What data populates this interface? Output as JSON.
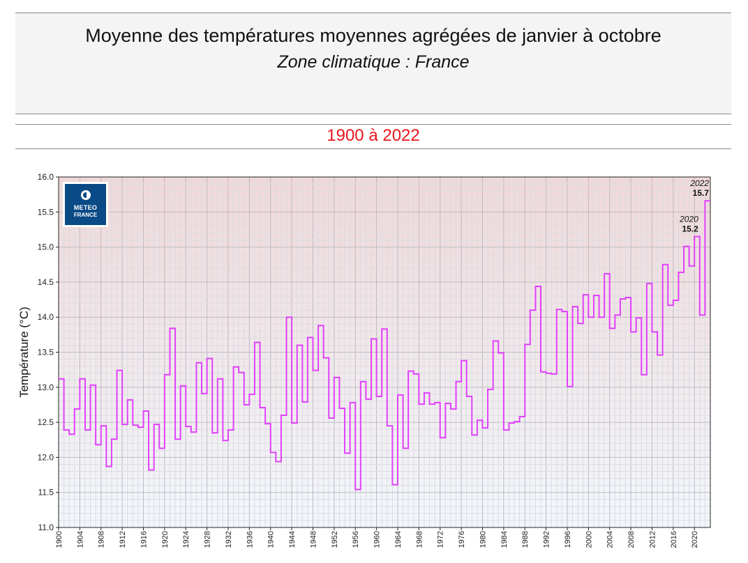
{
  "header": {
    "title": "Moyenne des températures moyennes agrégées de janvier à octobre",
    "subtitle": "Zone climatique : France",
    "period": "1900 à 2022"
  },
  "logo": {
    "line1": "METEO",
    "line2": "FRANCE"
  },
  "colors": {
    "series": "#e040fb",
    "period_text": "#e8161d",
    "bg_top": "#f0d8d8",
    "bg_bottom": "#f2f7fc",
    "grid": "#c8c8c8",
    "logo_bg": "#0a4a86"
  },
  "chart_data": {
    "type": "line",
    "step": true,
    "ylabel": "Température (°C)",
    "xlabel": "",
    "ylim": [
      11.0,
      16.0
    ],
    "yticks": [
      "11.0",
      "11.5",
      "12.0",
      "12.5",
      "13.0",
      "13.5",
      "14.0",
      "14.5",
      "15.0",
      "15.5",
      "16.0"
    ],
    "xlim": [
      1900,
      2023
    ],
    "xticks": [
      "1900",
      "1904",
      "1908",
      "1912",
      "1916",
      "1920",
      "1924",
      "1928",
      "1932",
      "1936",
      "1940",
      "1944",
      "1948",
      "1952",
      "1956",
      "1960",
      "1964",
      "1968",
      "1972",
      "1976",
      "1980",
      "1984",
      "1988",
      "1992",
      "1996",
      "2000",
      "2004",
      "2008",
      "2012",
      "2016",
      "2020"
    ],
    "grid": true,
    "series": [
      {
        "x": [
          1900,
          1901,
          1902,
          1903,
          1904,
          1905,
          1906,
          1907,
          1908,
          1909,
          1910,
          1911,
          1912,
          1913,
          1914,
          1915,
          1916,
          1917,
          1918,
          1919,
          1920,
          1921,
          1922,
          1923,
          1924,
          1925,
          1926,
          1927,
          1928,
          1929,
          1930,
          1931,
          1932,
          1933,
          1934,
          1935,
          1936,
          1937,
          1938,
          1939,
          1940,
          1941,
          1942,
          1943,
          1944,
          1945,
          1946,
          1947,
          1948,
          1949,
          1950,
          1951,
          1952,
          1953,
          1954,
          1955,
          1956,
          1957,
          1958,
          1959,
          1960,
          1961,
          1962,
          1963,
          1964,
          1965,
          1966,
          1967,
          1968,
          1969,
          1970,
          1971,
          1972,
          1973,
          1974,
          1975,
          1976,
          1977,
          1978,
          1979,
          1980,
          1981,
          1982,
          1983,
          1984,
          1985,
          1986,
          1987,
          1988,
          1989,
          1990,
          1991,
          1992,
          1993,
          1994,
          1995,
          1996,
          1997,
          1998,
          1999,
          2000,
          2001,
          2002,
          2003,
          2004,
          2005,
          2006,
          2007,
          2008,
          2009,
          2010,
          2011,
          2012,
          2013,
          2014,
          2015,
          2016,
          2017,
          2018,
          2019,
          2020,
          2021,
          2022
        ],
        "values": [
          13.12,
          12.39,
          12.33,
          12.69,
          13.12,
          12.39,
          13.03,
          12.18,
          12.45,
          11.87,
          12.26,
          13.24,
          12.47,
          12.82,
          12.46,
          12.43,
          12.66,
          11.82,
          12.47,
          12.13,
          13.18,
          13.84,
          12.26,
          13.02,
          12.44,
          12.36,
          13.35,
          12.91,
          13.41,
          12.35,
          13.12,
          12.24,
          12.39,
          13.29,
          13.21,
          12.75,
          12.9,
          13.64,
          12.71,
          12.48,
          12.07,
          11.94,
          12.6,
          14.0,
          12.49,
          13.6,
          12.79,
          13.71,
          13.24,
          13.88,
          13.42,
          12.56,
          13.14,
          12.7,
          12.06,
          12.78,
          11.54,
          13.08,
          12.83,
          13.69,
          12.87,
          13.83,
          12.45,
          11.61,
          12.89,
          12.13,
          13.23,
          13.19,
          12.76,
          12.92,
          12.76,
          12.78,
          12.28,
          12.77,
          12.69,
          13.08,
          13.38,
          12.87,
          12.32,
          12.53,
          12.42,
          12.97,
          13.66,
          13.49,
          12.39,
          12.49,
          12.51,
          12.58,
          13.61,
          14.1,
          14.44,
          13.22,
          13.2,
          13.19,
          14.11,
          14.08,
          13.01,
          14.15,
          13.91,
          14.32,
          14.0,
          14.31,
          14.0,
          14.62,
          13.84,
          14.03,
          14.26,
          14.28,
          13.79,
          13.99,
          13.18,
          14.48,
          13.79,
          13.46,
          14.75,
          14.17,
          14.24,
          14.64,
          15.01,
          14.73,
          15.15,
          14.03,
          15.66
        ]
      }
    ],
    "annotations": [
      {
        "year_label": "2022",
        "value_label": "15.7",
        "x": 2022,
        "y": 15.66
      },
      {
        "year_label": "2020",
        "value_label": "15.2",
        "x": 2020,
        "y": 15.15
      }
    ]
  }
}
